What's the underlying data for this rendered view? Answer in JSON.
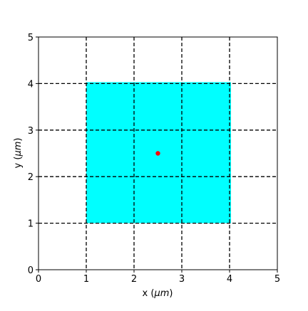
{
  "chart_data": {
    "type": "scatter",
    "title": "",
    "xlabel_main": "x (",
    "xlabel_unit": "μm",
    "xlabel_close": ")",
    "ylabel_main": "y (",
    "ylabel_unit": "μm",
    "ylabel_close": ")",
    "xlim": [
      0,
      5
    ],
    "ylim": [
      0,
      5
    ],
    "xticks": [
      0,
      1,
      2,
      3,
      4,
      5
    ],
    "yticks": [
      0,
      1,
      2,
      3,
      4,
      5
    ],
    "xtick_labels": [
      "0",
      "1",
      "2",
      "3",
      "4",
      "5"
    ],
    "ytick_labels": [
      "0",
      "1",
      "2",
      "3",
      "4",
      "5"
    ],
    "grid": true,
    "grid_style": "dashed",
    "grid_color": "#000000",
    "rectangles": [
      {
        "x0": 1.0,
        "y0": 1.0,
        "x1": 4.03,
        "y1": 4.03,
        "color": "#00ffff"
      }
    ],
    "points": [
      {
        "x": 2.5,
        "y": 2.5,
        "color": "#ff0000"
      }
    ],
    "legend": "none"
  }
}
